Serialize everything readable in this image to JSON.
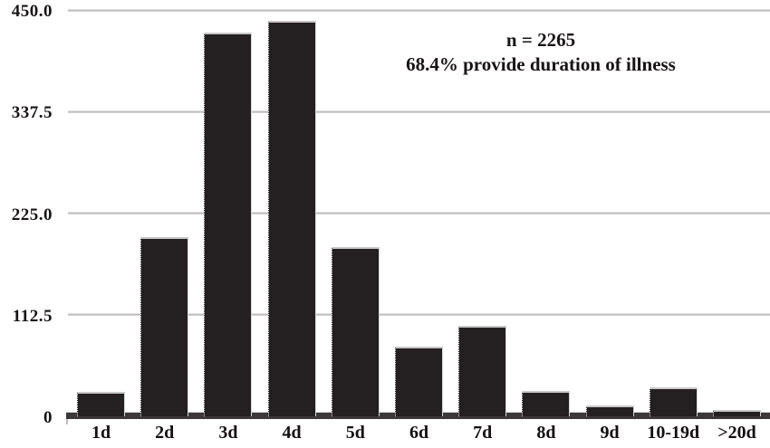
{
  "chart_data": {
    "type": "bar",
    "title": "",
    "xlabel": "",
    "ylabel": "",
    "categories": [
      "1d",
      "2d",
      "3d",
      "4d",
      "5d",
      "6d",
      "7d",
      "8d",
      "9d",
      "10-19d",
      ">20d"
    ],
    "values": [
      27,
      198,
      425,
      438,
      187,
      77,
      100,
      28,
      12,
      32,
      7
    ],
    "ylim": [
      0,
      450
    ],
    "yticks": [
      0,
      112.5,
      225.0,
      337.5,
      450.0
    ],
    "ytick_labels": [
      "0",
      "112.5",
      "225.0",
      "337.5",
      "450.0"
    ],
    "grid": "horizontal gridlines on, drawn behind bars",
    "legend": "none",
    "annotation": {
      "line1": "n = 2265",
      "line2": "68.4% provide duration of illness"
    },
    "colors": {
      "bar": "#241f21",
      "gridline": "#b9b9b9",
      "axis_band": "#3c3839",
      "text": "#181415",
      "background": "#ffffff"
    }
  }
}
